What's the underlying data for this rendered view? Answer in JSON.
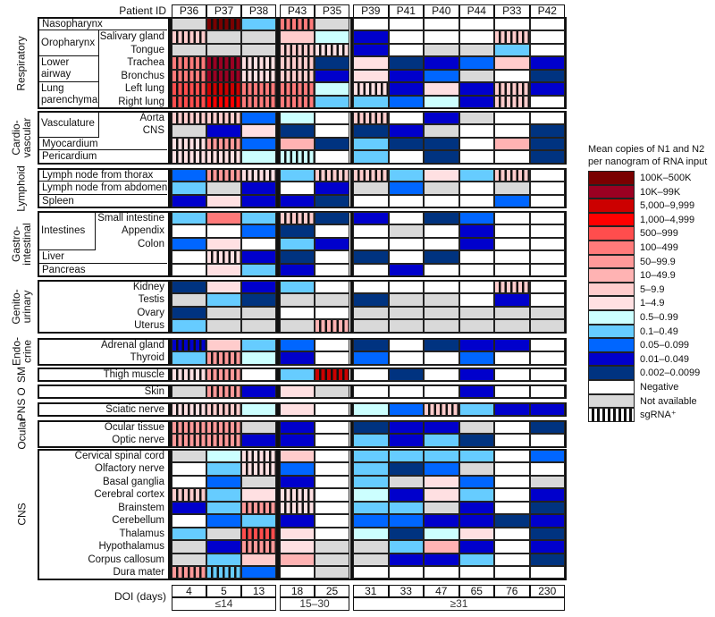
{
  "chart_data": {
    "type": "heatmap",
    "header_label": "Patient ID",
    "footer_label": "DOI (days)",
    "columns": [
      {
        "id": "P36",
        "doi": "4"
      },
      {
        "id": "P37",
        "doi": "5"
      },
      {
        "id": "P38",
        "doi": "13"
      },
      {
        "id": "P43",
        "doi": "18"
      },
      {
        "id": "P35",
        "doi": "25"
      },
      {
        "id": "P39",
        "doi": "31"
      },
      {
        "id": "P41",
        "doi": "33"
      },
      {
        "id": "P40",
        "doi": "47"
      },
      {
        "id": "P44",
        "doi": "65"
      },
      {
        "id": "P33",
        "doi": "76"
      },
      {
        "id": "P42",
        "doi": "230"
      }
    ],
    "doi_groups": [
      {
        "label": "≤14",
        "count": 3
      },
      {
        "label": "15–30",
        "count": 2
      },
      {
        "label": "≥31",
        "count": 6
      }
    ],
    "sections": [
      {
        "name": "Respiratory",
        "groups": [
          {
            "label": "Oropharynx",
            "rows": [
              1,
              2
            ]
          },
          {
            "label": "Lower airway",
            "rows": [
              3,
              4
            ]
          },
          {
            "label": "Lung parenchyma",
            "rows": [
              5,
              6
            ]
          }
        ],
        "rows": [
          {
            "label": "Nasopharynx",
            "values": [
              "X",
              "0s",
              "11",
              "5s",
              "X",
              "N",
              "N",
              "N",
              "N",
              "N",
              "N"
            ]
          },
          {
            "label": "Salivary gland",
            "values": [
              "8s",
              "X",
              "X",
              "8",
              "10",
              "13",
              "N",
              "N",
              "N",
              "8s",
              "N"
            ]
          },
          {
            "label": "Tongue",
            "values": [
              "X",
              "X",
              "X",
              "8s",
              "9s",
              "13",
              "N",
              "X",
              "X",
              "11",
              "N"
            ]
          },
          {
            "label": "Trachea",
            "values": [
              "5s",
              "1s",
              "9s",
              "8s",
              "14",
              "9",
              "14",
              "13",
              "12",
              "8",
              "13"
            ]
          },
          {
            "label": "Bronchus",
            "values": [
              "5s",
              "1s",
              "9s",
              "8s",
              "13",
              "9",
              "13",
              "12",
              "X",
              "N",
              "14"
            ]
          },
          {
            "label": "Left lung",
            "values": [
              "4s",
              "2s",
              "5s",
              "5s",
              "10",
              "9s",
              "13",
              "9",
              "13",
              "8s",
              "13"
            ]
          },
          {
            "label": "Right lung",
            "values": [
              "4s",
              "3s",
              "5s",
              "5s",
              "11",
              "11",
              "12",
              "10",
              "13",
              "8s",
              "N"
            ]
          }
        ]
      },
      {
        "name": "Cardio-vascular",
        "groups": [
          {
            "label": "Vasculature",
            "rows": [
              0,
              1
            ]
          }
        ],
        "rows": [
          {
            "label": "Aorta",
            "values": [
              "8s",
              "8s",
              "12",
              "10",
              "N",
              "8s",
              "N",
              "13",
              "X",
              "N",
              "N"
            ]
          },
          {
            "label": "CNS",
            "values": [
              "X",
              "13",
              "9",
              "14",
              "N",
              "14",
              "13",
              "X",
              "N",
              "N",
              "14"
            ]
          },
          {
            "label": "Myocardium",
            "values": [
              "9s",
              "6s",
              "12",
              "7",
              "14",
              "11",
              "14",
              "14",
              "N",
              "7",
              "14"
            ]
          },
          {
            "label": "Pericardium",
            "values": [
              "9s",
              "9s",
              "10",
              "10s",
              "N",
              "11",
              "N",
              "14",
              "N",
              "N",
              "14"
            ]
          }
        ]
      },
      {
        "name": "Lymphoid",
        "groups": [],
        "rows": [
          {
            "label": "Lymph node from thorax",
            "values": [
              "12",
              "6s",
              "9s",
              "11",
              "8s",
              "8s",
              "11",
              "9",
              "11",
              "8s",
              "N"
            ]
          },
          {
            "label": "Lymph node from abdomen",
            "values": [
              "11",
              "X",
              "13",
              "N",
              "13",
              "X",
              "12",
              "X",
              "N",
              "X",
              "N"
            ]
          },
          {
            "label": "Spleen",
            "values": [
              "13",
              "9",
              "13",
              "13",
              "14",
              "N",
              "N",
              "N",
              "N",
              "12",
              "N"
            ]
          }
        ]
      },
      {
        "name": "Gastro-intestinal",
        "groups": [
          {
            "label": "Intestines",
            "rows": [
              0,
              1,
              2
            ]
          }
        ],
        "rows": [
          {
            "label": "Small intestine",
            "values": [
              "11",
              "5",
              "11",
              "8s",
              "14",
              "13",
              "N",
              "14",
              "12",
              "N",
              "N"
            ]
          },
          {
            "label": "Appendix",
            "values": [
              "N",
              "N",
              "12",
              "14",
              "N",
              "N",
              "X",
              "N",
              "13",
              "N",
              "N"
            ]
          },
          {
            "label": "Colon",
            "values": [
              "12",
              "9",
              "N",
              "11",
              "13",
              "N",
              "N",
              "N",
              "13",
              "N",
              "N"
            ]
          },
          {
            "label": "Liver",
            "values": [
              "N",
              "9s",
              "13",
              "14",
              "N",
              "14",
              "N",
              "14",
              "N",
              "N",
              "N"
            ]
          },
          {
            "label": "Pancreas",
            "values": [
              "N",
              "9",
              "11",
              "13",
              "N",
              "N",
              "13",
              "N",
              "N",
              "N",
              "N"
            ]
          }
        ]
      },
      {
        "name": "Genito-urinary",
        "groups": [],
        "rows": [
          {
            "label": "Kidney",
            "values": [
              "14",
              "9",
              "13",
              "11",
              "N",
              "N",
              "N",
              "N",
              "N",
              "8s",
              "N"
            ]
          },
          {
            "label": "Testis",
            "values": [
              "X",
              "11",
              "14",
              "X",
              "X",
              "14",
              "X",
              "X",
              "N",
              "13",
              "N"
            ]
          },
          {
            "label": "Ovary",
            "values": [
              "14",
              "X",
              "X",
              "N",
              "N",
              "X",
              "X",
              "X",
              "X",
              "X",
              "X"
            ]
          },
          {
            "label": "Uterus",
            "values": [
              "11",
              "X",
              "X",
              "X",
              "7s",
              "X",
              "X",
              "X",
              "X",
              "X",
              "X"
            ]
          }
        ]
      },
      {
        "name": "Endo-crine",
        "groups": [],
        "rows": [
          {
            "label": "Adrenal gland",
            "values": [
              "13s",
              "8",
              "11",
              "12",
              "N",
              "14",
              "N",
              "14",
              "13",
              "13",
              "N"
            ]
          },
          {
            "label": "Thyroid",
            "values": [
              "11",
              "6s",
              "10",
              "13",
              "N",
              "12",
              "N",
              "N",
              "12",
              "N",
              "N"
            ]
          }
        ]
      },
      {
        "name": "SM",
        "groups": [],
        "rows": [
          {
            "label": "Thigh muscle",
            "values": [
              "9s",
              "6s",
              "N",
              "11",
              "2s",
              "N",
              "14",
              "N",
              "13",
              "N",
              "N"
            ]
          }
        ]
      },
      {
        "name": "O",
        "groups": [],
        "rows": [
          {
            "label": "Skin",
            "values": [
              "X",
              "6s",
              "13",
              "9",
              "X",
              "N",
              "N",
              "N",
              "13",
              "N",
              "N"
            ]
          }
        ]
      },
      {
        "name": "PNS",
        "groups": [],
        "rows": [
          {
            "label": "Sciatic nerve",
            "values": [
              "9s",
              "8s",
              "10",
              "9",
              "N",
              "10",
              "12",
              "8s",
              "11",
              "13",
              "13"
            ]
          }
        ]
      },
      {
        "name": "Ocular",
        "groups": [],
        "rows": [
          {
            "label": "Ocular tissue",
            "values": [
              "6s",
              "6s",
              "X",
              "13",
              "N",
              "14",
              "13",
              "13",
              "X",
              "N",
              "14"
            ]
          },
          {
            "label": "Optic nerve",
            "values": [
              "6s",
              "6s",
              "13",
              "13",
              "N",
              "11",
              "13",
              "11",
              "14",
              "N",
              "N"
            ]
          }
        ]
      },
      {
        "name": "CNS",
        "groups": [],
        "rows": [
          {
            "label": "Cervical spinal cord",
            "values": [
              "X",
              "10",
              "9s",
              "8",
              "N",
              "11",
              "11",
              "11",
              "11",
              "N",
              "12"
            ]
          },
          {
            "label": "Olfactory nerve",
            "values": [
              "N",
              "11",
              "9s",
              "12",
              "N",
              "11",
              "14",
              "12",
              "X",
              "N",
              "N"
            ]
          },
          {
            "label": "Basal ganglia",
            "values": [
              "N",
              "12",
              "X",
              "13",
              "N",
              "11",
              "X",
              "9",
              "12",
              "N",
              "X"
            ]
          },
          {
            "label": "Cerebral cortex",
            "values": [
              "8s",
              "11",
              "9",
              "9s",
              "N",
              "10",
              "13",
              "9",
              "11",
              "N",
              "13"
            ]
          },
          {
            "label": "Brainstem",
            "values": [
              "13",
              "11",
              "6s",
              "9s",
              "N",
              "11",
              "11",
              "X",
              "13",
              "N",
              "14"
            ]
          },
          {
            "label": "Cerebellum",
            "values": [
              "N",
              "12",
              "11",
              "13",
              "N",
              "12",
              "12",
              "13",
              "13",
              "14",
              "13"
            ]
          },
          {
            "label": "Thalamus",
            "values": [
              "11",
              "X",
              "4s",
              "9",
              "N",
              "10",
              "14",
              "10",
              "9",
              "N",
              "14"
            ]
          },
          {
            "label": "Hypothalamus",
            "values": [
              "X",
              "13",
              "6s",
              "9",
              "X",
              "X",
              "11",
              "7",
              "13",
              "N",
              "13"
            ]
          },
          {
            "label": "Corpus callosum",
            "values": [
              "X",
              "11",
              "8",
              "7",
              "X",
              "X",
              "13",
              "13",
              "11",
              "N",
              "14"
            ]
          },
          {
            "label": "Dura mater",
            "values": [
              "6s",
              "11s",
              "12",
              "N",
              "X",
              "N",
              "N",
              "N",
              "N",
              "N",
              "N"
            ]
          }
        ]
      }
    ],
    "legend": {
      "title_line1": "Mean copies of N1 and N2",
      "title_line2": "per nanogram of RNA input",
      "bins": [
        {
          "label": "100K–500K",
          "color": "#7a0000"
        },
        {
          "label": "10K–99K",
          "color": "#9b0022"
        },
        {
          "label": "5,000–9,999",
          "color": "#cc0000"
        },
        {
          "label": "1,000–4,999",
          "color": "#ff0000"
        },
        {
          "label": "500–999",
          "color": "#ff4d4d"
        },
        {
          "label": "100–499",
          "color": "#ff7a7a"
        },
        {
          "label": "50–99.9",
          "color": "#ff9999"
        },
        {
          "label": "10–49.9",
          "color": "#ffb3b3"
        },
        {
          "label": "5–9.9",
          "color": "#ffcccc"
        },
        {
          "label": "1–4.9",
          "color": "#ffe0e2"
        },
        {
          "label": "0.5–0.99",
          "color": "#ccffff"
        },
        {
          "label": "0.1–0.49",
          "color": "#66ccff"
        },
        {
          "label": "0.05–0.099",
          "color": "#0066ff"
        },
        {
          "label": "0.01–0.049",
          "color": "#0000cc"
        },
        {
          "label": "0.002–0.0099",
          "color": "#003380"
        }
      ],
      "negative": {
        "label": "Negative",
        "color": "#ffffff"
      },
      "not_available": {
        "label": "Not available",
        "color": "#d9d9d9"
      },
      "sgrna": {
        "label": "sgRNA⁺"
      }
    }
  }
}
